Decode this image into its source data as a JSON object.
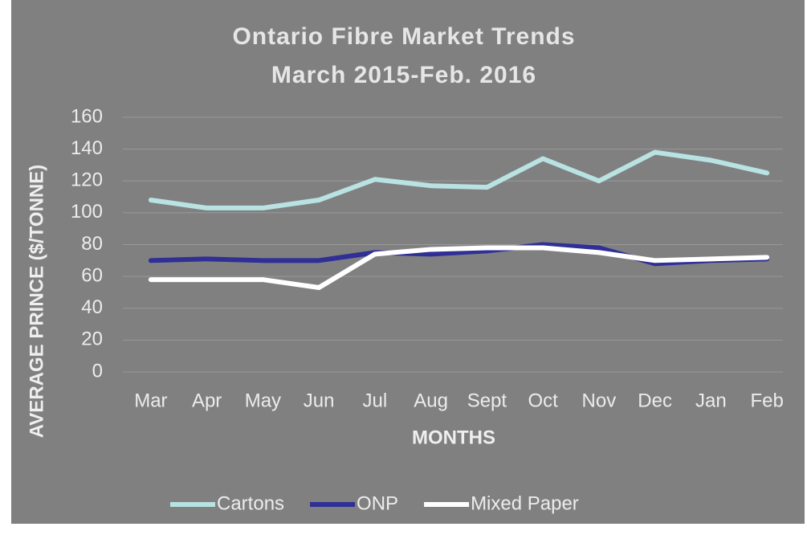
{
  "chart_data": {
    "type": "line",
    "title": "Ontario Fibre Market Trends",
    "subtitle": "March 2015-Feb. 2016",
    "x_label": "MONTHS",
    "y_label": "AVERAGE PRINCE ($/TONNE)",
    "categories": [
      "Mar",
      "Apr",
      "May",
      "Jun",
      "Jul",
      "Aug",
      "Sept",
      "Oct",
      "Nov",
      "Dec",
      "Jan",
      "Feb"
    ],
    "series": [
      {
        "name": "Cartons",
        "color": "#b9e2e2",
        "values": [
          108,
          103,
          103,
          108,
          121,
          117,
          116,
          134,
          120,
          138,
          133,
          125
        ]
      },
      {
        "name": "ONP",
        "color": "#2f2f96",
        "values": [
          70,
          71,
          70,
          70,
          75,
          74,
          76,
          80,
          78,
          68,
          70,
          71
        ]
      },
      {
        "name": "Mixed Paper",
        "color": "#ffffff",
        "values": [
          58,
          58,
          58,
          53,
          74,
          77,
          78,
          78,
          75,
          70,
          71,
          72
        ]
      }
    ],
    "ylim": [
      0,
      160
    ],
    "yticks": [
      0,
      20,
      40,
      60,
      80,
      100,
      120,
      140,
      160
    ],
    "grid": true,
    "legend": "bottom"
  }
}
